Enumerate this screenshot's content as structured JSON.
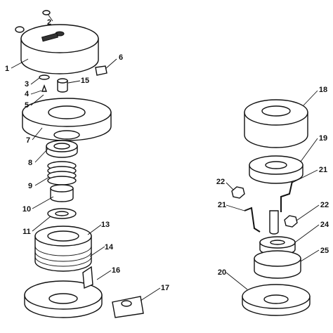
{
  "callouts": [
    "1",
    "2",
    "3",
    "4",
    "5",
    "6",
    "7",
    "8",
    "9",
    "10",
    "11",
    "13",
    "14",
    "15",
    "16",
    "17",
    "18",
    "19",
    "20",
    "21",
    "21",
    "22",
    "22",
    "24",
    "25"
  ]
}
